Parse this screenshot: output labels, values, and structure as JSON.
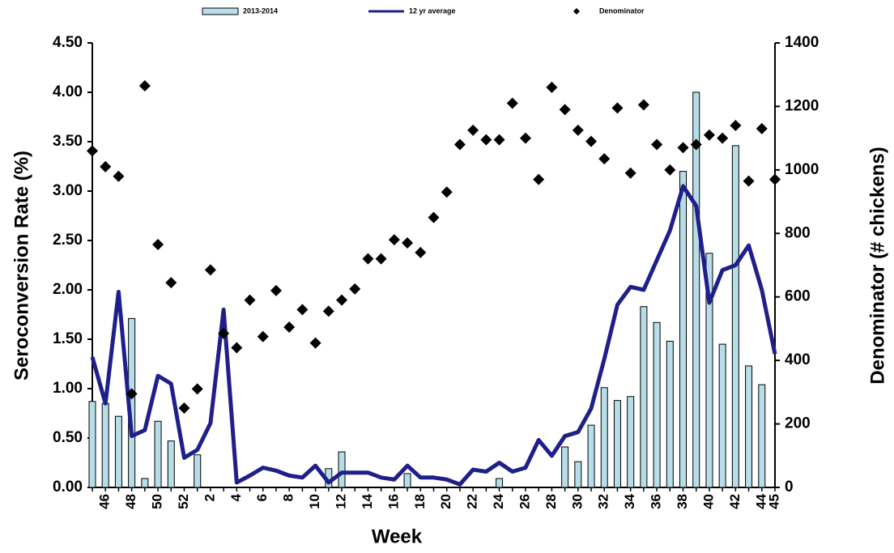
{
  "chart_data": {
    "type": "combo",
    "x_label": "Week",
    "y_label": "Seroconversion Rate (%)",
    "y2_label": "Denominator (# chickens)",
    "legend": "top",
    "categories": [
      null,
      "46",
      null,
      "48",
      null,
      "50",
      null,
      "52",
      null,
      "2",
      null,
      "4",
      null,
      "6",
      null,
      "8",
      null,
      "10",
      null,
      "12",
      null,
      "14",
      null,
      "16",
      null,
      "18",
      null,
      "20",
      null,
      "22",
      null,
      "24",
      null,
      "26",
      null,
      "28",
      null,
      "30",
      null,
      "32",
      null,
      "34",
      null,
      "36",
      null,
      "38",
      null,
      "40",
      null,
      "42",
      null,
      "44",
      "45"
    ],
    "ylim": [
      0,
      4.5
    ],
    "yticks": [
      {
        "value": 0,
        "label": "0.00"
      },
      {
        "value": 0.5,
        "label": "0.50"
      },
      {
        "value": 1,
        "label": "1.00"
      },
      {
        "value": 1.5,
        "label": "1.50"
      },
      {
        "value": 2,
        "label": "2.00"
      },
      {
        "value": 2.5,
        "label": "2.50"
      },
      {
        "value": 3,
        "label": "3.00"
      },
      {
        "value": 3.5,
        "label": "3.50"
      },
      {
        "value": 4,
        "label": "4.00"
      },
      {
        "value": 4.5,
        "label": "4.50"
      }
    ],
    "y2lim": [
      0,
      1400
    ],
    "y2ticks": [
      0,
      200,
      400,
      600,
      800,
      1000,
      1200,
      1400
    ],
    "series": [
      {
        "name": "2013-2014",
        "type": "bar",
        "color": "#b7dde8",
        "values": [
          0.87,
          0.85,
          0.72,
          1.71,
          0.09,
          0.67,
          0.47,
          0,
          0.33,
          0,
          0,
          0,
          0,
          0,
          0,
          0,
          0,
          0,
          0.19,
          0.36,
          0,
          0,
          0,
          0,
          0.14,
          0,
          0,
          0,
          0,
          0,
          0,
          0.09,
          0,
          0,
          0,
          0,
          0.41,
          0.26,
          0.63,
          1.01,
          0.88,
          0.92,
          1.83,
          1.67,
          1.48,
          3.2,
          4.0,
          2.37,
          1.45,
          3.46,
          1.23,
          1.04,
          0
        ]
      },
      {
        "name": "12 yr average",
        "type": "line",
        "color": "#1f1f8c",
        "values": [
          1.32,
          0.85,
          1.98,
          0.52,
          0.58,
          1.13,
          1.05,
          0.3,
          0.38,
          0.65,
          1.8,
          0.05,
          0.12,
          0.2,
          0.17,
          0.12,
          0.1,
          0.22,
          0.05,
          0.15,
          0.15,
          0.15,
          0.1,
          0.08,
          0.22,
          0.1,
          0.1,
          0.08,
          0.03,
          0.18,
          0.16,
          0.25,
          0.16,
          0.2,
          0.48,
          0.32,
          0.52,
          0.56,
          0.8,
          1.3,
          1.85,
          2.03,
          2.0,
          2.3,
          2.6,
          3.05,
          2.85,
          1.87,
          2.2,
          2.25,
          2.45,
          2.0,
          1.35
        ]
      },
      {
        "name": "Denominator",
        "type": "scatter",
        "axis": "y2",
        "color": "#000000",
        "values": [
          1060,
          1010,
          980,
          295,
          1265,
          765,
          645,
          250,
          310,
          685,
          485,
          440,
          590,
          475,
          620,
          505,
          560,
          455,
          555,
          590,
          625,
          720,
          720,
          780,
          770,
          740,
          850,
          930,
          1080,
          1125,
          1095,
          1095,
          1210,
          1100,
          970,
          1260,
          1190,
          1125,
          1090,
          1035,
          1195,
          990,
          1205,
          1080,
          1000,
          1070,
          1080,
          1110,
          1100,
          1140,
          965,
          1130,
          970
        ]
      }
    ]
  }
}
